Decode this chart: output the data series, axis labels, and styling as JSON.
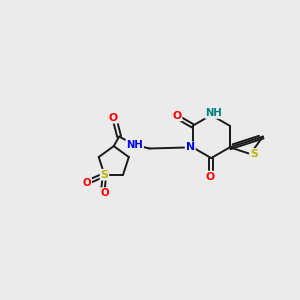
{
  "background_color": "#ebebeb",
  "bond_color": "#1a1a1a",
  "atom_colors": {
    "O": "#ff0000",
    "N": "#0000ee",
    "S_thio": "#b8b800",
    "S_sul": "#cccc00",
    "NH": "#008080",
    "C": "#1a1a1a"
  },
  "figsize": [
    3.0,
    3.0
  ],
  "dpi": 100,
  "xlim": [
    0,
    10
  ],
  "ylim": [
    0,
    10
  ]
}
